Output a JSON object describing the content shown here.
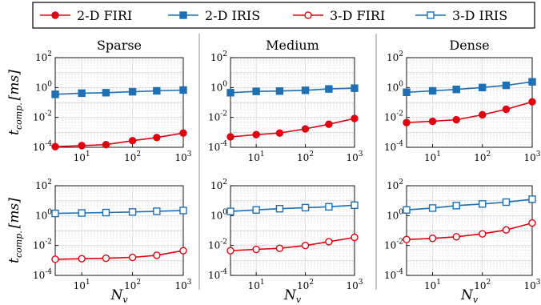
{
  "chart_data": {
    "type": "line",
    "scale": {
      "x": "log",
      "y": "log"
    },
    "x": [
      3,
      10,
      30,
      100,
      300,
      1000
    ],
    "xlim": [
      3,
      1000
    ],
    "ylim_exponent": [
      -4,
      2
    ],
    "x_ticks": [
      {
        "base": "10",
        "exp": "1",
        "value": 10
      },
      {
        "base": "10",
        "exp": "2",
        "value": 100
      },
      {
        "base": "10",
        "exp": "3",
        "value": 1000
      }
    ],
    "y_ticks": [
      {
        "base": "10",
        "exp": "-4",
        "value": 0.0001
      },
      {
        "base": "10",
        "exp": "-2",
        "value": 0.01
      },
      {
        "base": "10",
        "exp": "0",
        "value": 1
      },
      {
        "base": "10",
        "exp": "2",
        "value": 100
      }
    ],
    "grid": true,
    "legend": {
      "placement": "top",
      "entries": [
        {
          "name": "2-D FIRI",
          "color": "#e3000f",
          "marker": "circle-filled"
        },
        {
          "name": "2-D IRIS",
          "color": "#1f6fb4",
          "marker": "square-filled"
        },
        {
          "name": "3-D FIRI",
          "color": "#e3000f",
          "marker": "circle-open"
        },
        {
          "name": "3-D IRIS",
          "color": "#1f6fb4",
          "marker": "square-open"
        }
      ]
    },
    "column_titles": [
      "Sparse",
      "Medium",
      "Dense"
    ],
    "ylabel_base": "t",
    "ylabel_sub": "comp.",
    "ylabel_unit": "[ms]",
    "xlabel_base": "N",
    "xlabel_sub": "v",
    "panels": [
      {
        "row": 0,
        "col": 0,
        "series": [
          {
            "legend_index": 0,
            "values": [
              0.00011,
              0.00013,
              0.00015,
              0.00028,
              0.00045,
              0.0009
            ]
          },
          {
            "legend_index": 1,
            "values": [
              0.35,
              0.42,
              0.45,
              0.52,
              0.6,
              0.68
            ]
          }
        ]
      },
      {
        "row": 0,
        "col": 1,
        "series": [
          {
            "legend_index": 0,
            "values": [
              0.0005,
              0.0007,
              0.0009,
              0.0017,
              0.0035,
              0.0085
            ]
          },
          {
            "legend_index": 1,
            "values": [
              0.45,
              0.55,
              0.58,
              0.65,
              0.8,
              0.9
            ]
          }
        ]
      },
      {
        "row": 0,
        "col": 2,
        "series": [
          {
            "legend_index": 0,
            "values": [
              0.0045,
              0.0055,
              0.007,
              0.015,
              0.035,
              0.11
            ]
          },
          {
            "legend_index": 1,
            "values": [
              0.48,
              0.6,
              0.75,
              1.0,
              1.4,
              2.4
            ]
          }
        ]
      },
      {
        "row": 1,
        "col": 0,
        "series": [
          {
            "legend_index": 2,
            "values": [
              0.0012,
              0.0013,
              0.0014,
              0.0016,
              0.0022,
              0.0045
            ]
          },
          {
            "legend_index": 3,
            "values": [
              1.4,
              1.5,
              1.6,
              1.75,
              1.95,
              2.2
            ]
          }
        ]
      },
      {
        "row": 1,
        "col": 1,
        "series": [
          {
            "legend_index": 2,
            "values": [
              0.0045,
              0.0055,
              0.0065,
              0.01,
              0.018,
              0.035
            ]
          },
          {
            "legend_index": 3,
            "values": [
              1.9,
              2.4,
              2.9,
              3.4,
              3.9,
              5.0
            ]
          }
        ]
      },
      {
        "row": 1,
        "col": 2,
        "series": [
          {
            "legend_index": 2,
            "values": [
              0.025,
              0.03,
              0.038,
              0.06,
              0.11,
              0.32
            ]
          },
          {
            "legend_index": 3,
            "values": [
              2.4,
              3.2,
              4.7,
              6.0,
              8.0,
              12.5
            ]
          }
        ]
      }
    ]
  }
}
